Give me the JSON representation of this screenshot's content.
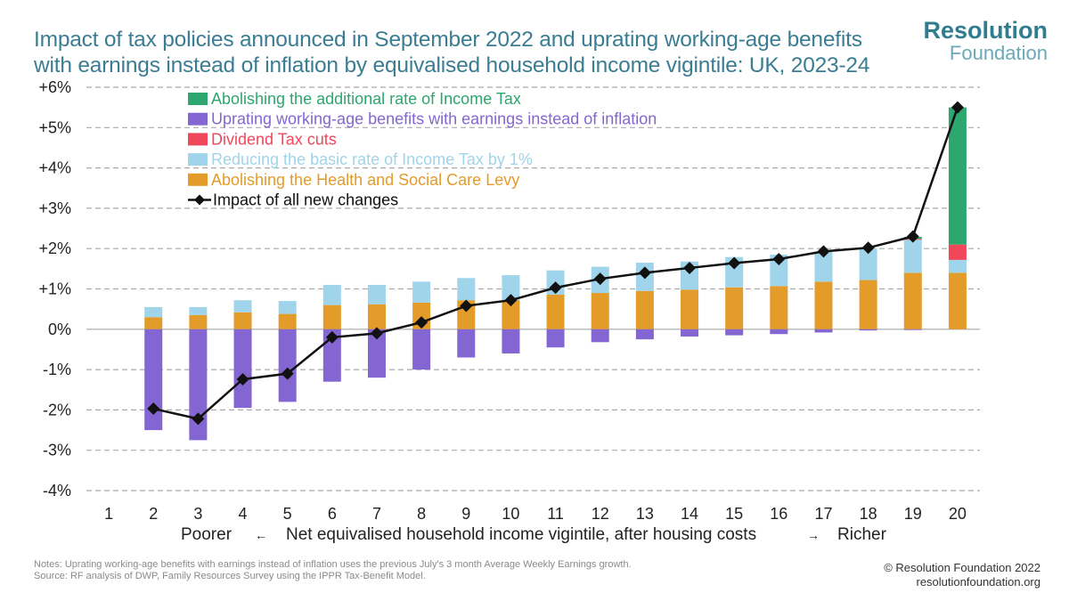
{
  "header": {
    "title_line1": "Impact of tax policies announced in September 2022 and uprating working-age benefits",
    "title_line2": "with earnings instead of inflation by equivalised household income vigintile: UK, 2023-24",
    "logo_line1": "Resolution",
    "logo_line2": "Foundation"
  },
  "footer": {
    "notes_line1": "Notes: Uprating working-age benefits with earnings instead of inflation uses the previous July's 3 month Average Weekly Earnings growth.",
    "notes_line2": "Source: RF analysis of DWP, Family Resources Survey using the IPPR Tax-Benefit Model.",
    "copyright": "© Resolution Foundation 2022",
    "website": "resolutionfoundation.org"
  },
  "chart_data": {
    "type": "bar",
    "stacked": true,
    "categories": [
      "1",
      "2",
      "3",
      "4",
      "5",
      "6",
      "7",
      "8",
      "9",
      "10",
      "11",
      "12",
      "13",
      "14",
      "15",
      "16",
      "17",
      "18",
      "19",
      "20"
    ],
    "xlabel_left": "Poorer",
    "xlabel_left_arrow": "←",
    "xlabel": "Net equivalised household income vigintile, after housing costs",
    "xlabel_right_arrow": "→",
    "xlabel_right": "Richer",
    "ylim": [
      -4,
      6
    ],
    "yticks": [
      {
        "value": 6,
        "label": "+6%"
      },
      {
        "value": 5,
        "label": "+5%"
      },
      {
        "value": 4,
        "label": "+4%"
      },
      {
        "value": 3,
        "label": "+3%"
      },
      {
        "value": 2,
        "label": "+2%"
      },
      {
        "value": 1,
        "label": "+1%"
      },
      {
        "value": 0,
        "label": "0%"
      },
      {
        "value": -1,
        "label": "-1%"
      },
      {
        "value": -2,
        "label": "-2%"
      },
      {
        "value": -3,
        "label": "-3%"
      },
      {
        "value": -4,
        "label": "-4%"
      }
    ],
    "grid": "horizontal dashed",
    "legend_position": "top-left",
    "series": [
      {
        "name": "Abolishing the additional rate of Income Tax",
        "color": "#2ea66f",
        "values": [
          0,
          0,
          0,
          0,
          0,
          0,
          0,
          0,
          0,
          0,
          0,
          0,
          0,
          0,
          0,
          0,
          0,
          0,
          0.05,
          3.4
        ]
      },
      {
        "name": "Uprating working-age benefits with earnings instead of inflation",
        "color": "#8366d1",
        "values": [
          0,
          -2.5,
          -2.75,
          -1.95,
          -1.8,
          -1.3,
          -1.2,
          -1.0,
          -0.7,
          -0.6,
          -0.45,
          -0.32,
          -0.25,
          -0.18,
          -0.15,
          -0.12,
          -0.08,
          -0.03,
          -0.02,
          0
        ]
      },
      {
        "name": "Dividend Tax cuts",
        "color": "#f0475a",
        "values": [
          0,
          0,
          0,
          0,
          0,
          0,
          0,
          0,
          0,
          0,
          0,
          0,
          0,
          0,
          0,
          0,
          0,
          0,
          0.02,
          0.38
        ]
      },
      {
        "name": "Reducing the basic rate of Income Tax by 1%",
        "color": "#9fd4ea",
        "values": [
          0,
          0.25,
          0.2,
          0.3,
          0.32,
          0.5,
          0.48,
          0.52,
          0.55,
          0.62,
          0.6,
          0.65,
          0.7,
          0.7,
          0.75,
          0.78,
          0.75,
          0.78,
          0.82,
          0.32
        ]
      },
      {
        "name": "Abolishing the Health and Social Care Levy",
        "color": "#e39b2a",
        "values": [
          0,
          0.3,
          0.35,
          0.42,
          0.38,
          0.6,
          0.62,
          0.66,
          0.72,
          0.72,
          0.86,
          0.9,
          0.95,
          0.98,
          1.04,
          1.07,
          1.18,
          1.22,
          1.4,
          1.4
        ]
      }
    ],
    "line": {
      "name": "Impact of all new changes",
      "color": "#111111",
      "values": [
        null,
        -1.97,
        -2.22,
        -1.24,
        -1.1,
        -0.2,
        -0.1,
        0.17,
        0.58,
        0.72,
        1.03,
        1.25,
        1.4,
        1.52,
        1.64,
        1.74,
        1.93,
        2.02,
        2.3,
        5.5
      ]
    }
  }
}
